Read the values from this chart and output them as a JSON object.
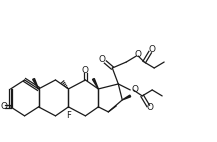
{
  "bg_color": "#ffffff",
  "line_color": "#1a1a1a",
  "lw": 0.9,
  "blw": 1.8,
  "figsize": [
    2.17,
    1.42
  ],
  "dpi": 100,
  "xlim": [
    0,
    217
  ],
  "ylim": [
    0,
    142
  ]
}
